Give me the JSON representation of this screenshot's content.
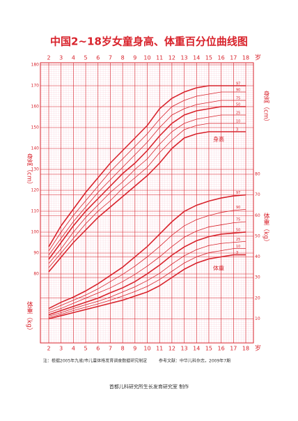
{
  "chart_data": {
    "type": "line",
    "title": "中国2~18岁女童身高、体重百分位曲线图",
    "ylabel": "身高（cm）",
    "y2label": "体重（kg）",
    "xunit": "岁",
    "annotations": [
      "身高",
      "体重"
    ],
    "notes": [
      "注：根据2005年九省/市儿童体格发育调查数据研究制定",
      "参考文献：中华儿科杂志，2009年7期",
      "首都儿科研究所生长发育研究室  制作"
    ],
    "x": [
      2,
      3,
      4,
      5,
      6,
      7,
      8,
      9,
      10,
      11,
      12,
      13,
      14,
      15,
      16,
      17,
      18
    ],
    "xlim": [
      2,
      18
    ],
    "xticks": [
      2,
      3,
      4,
      5,
      6,
      7,
      8,
      9,
      10,
      11,
      12,
      13,
      14,
      15,
      16,
      17,
      18
    ],
    "ylim": [
      80,
      180
    ],
    "yticks": [
      80,
      90,
      100,
      110,
      120,
      130,
      140,
      150,
      160,
      170,
      180
    ],
    "y2lim": [
      0,
      80
    ],
    "y2ticks": [
      10,
      20,
      30,
      40,
      50,
      60,
      70,
      80
    ],
    "grid": true,
    "color": "#d8222b",
    "series": [
      {
        "name": "97",
        "values": [
          93,
          103,
          111,
          119,
          126,
          133,
          139,
          145,
          151,
          159,
          164,
          167,
          169,
          170,
          170,
          170,
          170
        ]
      },
      {
        "name": "90",
        "values": [
          91,
          100,
          108,
          115,
          122,
          129,
          135,
          141,
          147,
          154,
          160,
          163,
          165,
          166,
          167,
          167,
          167
        ]
      },
      {
        "name": "75",
        "values": [
          89,
          97,
          105,
          112,
          119,
          125,
          131,
          137,
          143,
          150,
          156,
          159,
          161,
          162,
          163,
          163,
          163
        ]
      },
      {
        "name": "50",
        "values": [
          87,
          95,
          103,
          110,
          116,
          122,
          128,
          133,
          139,
          146,
          152,
          156,
          158,
          159,
          160,
          160,
          160
        ]
      },
      {
        "name": "25",
        "values": [
          85,
          92,
          100,
          107,
          113,
          119,
          124,
          130,
          135,
          142,
          148,
          152,
          154,
          155,
          156,
          156,
          156
        ]
      },
      {
        "name": "10",
        "values": [
          83,
          90,
          97,
          104,
          110,
          115,
          121,
          126,
          131,
          138,
          144,
          149,
          151,
          152,
          152,
          152,
          152
        ]
      },
      {
        "name": "3",
        "values": [
          81,
          88,
          95,
          101,
          107,
          112,
          117,
          122,
          127,
          133,
          140,
          145,
          147,
          148,
          148,
          148,
          148
        ]
      },
      {
        "name": "97",
        "axis": "y2",
        "values": [
          15,
          18,
          20.5,
          23.5,
          27,
          31,
          35,
          40,
          45,
          51,
          57,
          62,
          65,
          67,
          68.5,
          69.5,
          70
        ]
      },
      {
        "name": "90",
        "axis": "y2",
        "values": [
          14,
          16.5,
          19,
          21.5,
          24.5,
          28,
          31.5,
          35.5,
          40,
          45,
          50.5,
          55,
          58,
          60,
          61.5,
          62.5,
          63
        ]
      },
      {
        "name": "75",
        "axis": "y2",
        "values": [
          13,
          15,
          17.5,
          20,
          22.5,
          25,
          28,
          31.5,
          35.5,
          40,
          45,
          49.5,
          52.5,
          54.5,
          55.5,
          56.5,
          57
        ]
      },
      {
        "name": "50",
        "axis": "y2",
        "values": [
          12,
          14,
          16,
          18,
          20,
          22.6,
          25,
          28,
          31.8,
          36,
          40.8,
          44.8,
          47.8,
          49.8,
          51,
          51.5,
          52
        ]
      },
      {
        "name": "25",
        "axis": "y2",
        "values": [
          11.3,
          13,
          15,
          16.8,
          18.5,
          20.5,
          23,
          25.5,
          28.5,
          32,
          36.5,
          40.5,
          43.5,
          45.5,
          46.5,
          47,
          47.5
        ]
      },
      {
        "name": "10",
        "axis": "y2",
        "values": [
          10.6,
          12.2,
          14,
          15.6,
          17.2,
          19,
          21,
          23.2,
          25.7,
          29,
          33,
          37,
          40,
          42,
          43,
          44,
          44
        ]
      },
      {
        "name": "3",
        "axis": "y2",
        "values": [
          10,
          11.5,
          13,
          14.5,
          16,
          17.5,
          19,
          21,
          23,
          26,
          30,
          34,
          37,
          39,
          40,
          41,
          41
        ]
      }
    ]
  }
}
